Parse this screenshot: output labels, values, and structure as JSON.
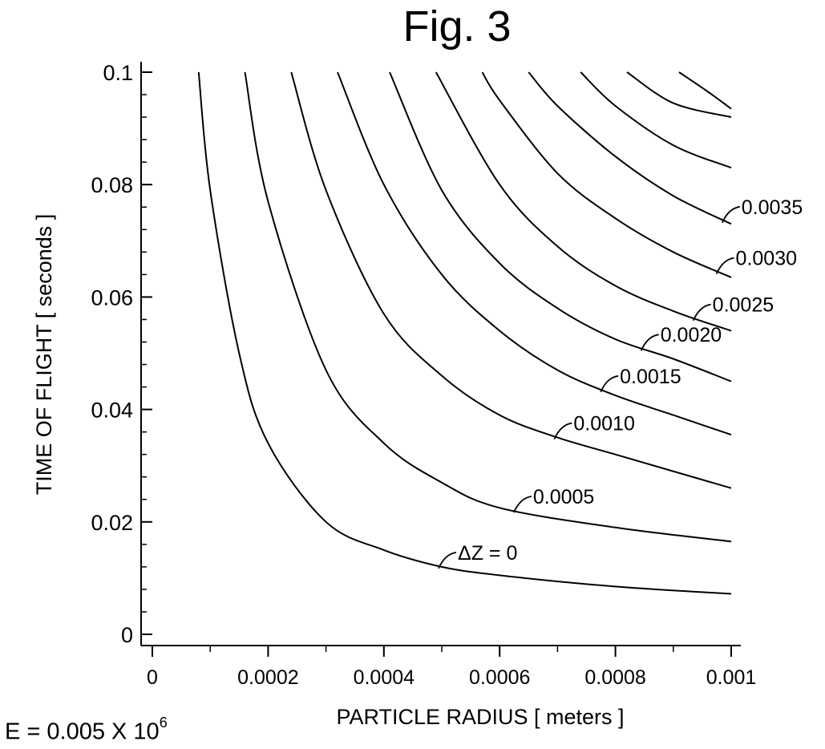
{
  "figure": {
    "title": "Fig. 3",
    "note_base": "E = 0.005 X 10",
    "note_exponent": "6"
  },
  "chart_data": {
    "type": "line",
    "xlabel": "PARTICLE RADIUS [ meters ]",
    "ylabel": "TIME OF FLIGHT [ seconds ]",
    "xlim": [
      0,
      0.001
    ],
    "ylim": [
      0,
      0.1
    ],
    "xticks": [
      0,
      0.0002,
      0.0004,
      0.0006,
      0.0008,
      0.001
    ],
    "xtick_labels": [
      "0",
      "0.0002",
      "0.0004",
      "0.0006",
      "0.0008",
      "0.001"
    ],
    "yticks": [
      0,
      0.02,
      0.04,
      0.06,
      0.08,
      0.1
    ],
    "ytick_labels": [
      "0",
      "0.02",
      "0.04",
      "0.06",
      "0.08",
      "0.1"
    ],
    "grid": false,
    "series": [
      {
        "name": "ΔZ = 0",
        "label_at_x": 0.0005,
        "x": [
          8e-05,
          0.0001,
          0.00015,
          0.0002,
          0.0003,
          0.0004,
          0.0005,
          0.0006,
          0.0008,
          0.001
        ],
        "y": [
          0.1,
          0.079,
          0.05,
          0.034,
          0.02,
          0.015,
          0.012,
          0.0105,
          0.0085,
          0.0072
        ]
      },
      {
        "name": "0.0005",
        "label_at_x": 0.00063,
        "x": [
          0.00016,
          0.0002,
          0.0003,
          0.0004,
          0.0005,
          0.0006,
          0.0008,
          0.001
        ],
        "y": [
          0.1,
          0.077,
          0.047,
          0.034,
          0.027,
          0.0225,
          0.019,
          0.0165
        ]
      },
      {
        "name": "0.0010",
        "label_at_x": 0.0007,
        "x": [
          0.00024,
          0.0003,
          0.0004,
          0.0005,
          0.0006,
          0.0007,
          0.0008,
          0.001
        ],
        "y": [
          0.1,
          0.079,
          0.057,
          0.046,
          0.039,
          0.035,
          0.032,
          0.026
        ]
      },
      {
        "name": "0.0015",
        "label_at_x": 0.00078,
        "x": [
          0.00032,
          0.0004,
          0.0005,
          0.0006,
          0.0007,
          0.0008,
          0.0009,
          0.001
        ],
        "y": [
          0.1,
          0.08,
          0.064,
          0.054,
          0.047,
          0.0425,
          0.039,
          0.0355
        ]
      },
      {
        "name": "0.0020",
        "label_at_x": 0.00085,
        "x": [
          0.00041,
          0.0005,
          0.0006,
          0.0007,
          0.0008,
          0.0009,
          0.001
        ],
        "y": [
          0.1,
          0.079,
          0.066,
          0.058,
          0.0525,
          0.049,
          0.045
        ]
      },
      {
        "name": "0.0025",
        "label_at_x": 0.00094,
        "x": [
          0.00049,
          0.0006,
          0.0007,
          0.0008,
          0.0009,
          0.001
        ],
        "y": [
          0.1,
          0.08,
          0.069,
          0.062,
          0.0575,
          0.054
        ]
      },
      {
        "name": "0.0030",
        "label_at_x": 0.00098,
        "x": [
          0.00057,
          0.0006,
          0.0007,
          0.0008,
          0.0009,
          0.001
        ],
        "y": [
          0.1,
          0.095,
          0.082,
          0.074,
          0.068,
          0.0635
        ]
      },
      {
        "name": "0.0035",
        "label_at_x": 0.00099,
        "x": [
          0.00065,
          0.0007,
          0.0008,
          0.0009,
          0.001
        ],
        "y": [
          0.1,
          0.094,
          0.085,
          0.078,
          0.073
        ]
      },
      {
        "x": [
          0.00074,
          0.0008,
          0.0009,
          0.001
        ],
        "y": [
          0.1,
          0.094,
          0.087,
          0.083
        ]
      },
      {
        "x": [
          0.00082,
          0.0009,
          0.001
        ],
        "y": [
          0.1,
          0.0945,
          0.092
        ]
      },
      {
        "x": [
          0.00091,
          0.00096,
          0.001
        ],
        "y": [
          0.1,
          0.0965,
          0.0935
        ]
      }
    ]
  }
}
